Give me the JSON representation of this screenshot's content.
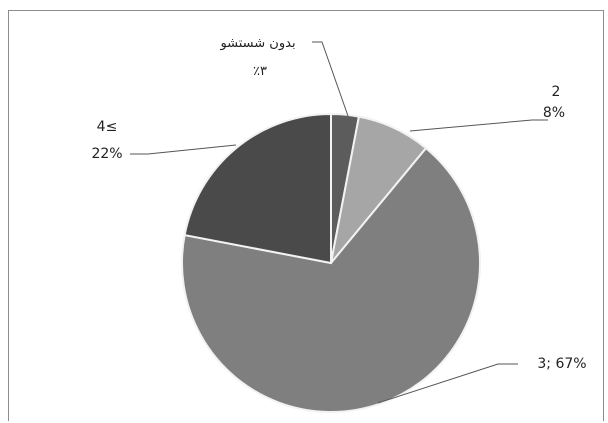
{
  "chart_data": {
    "type": "pie",
    "title": "",
    "slices": [
      {
        "name": "بدون شستشو",
        "value": 3,
        "label_line1": "بدون شستشو",
        "label_line2": "٪۳",
        "color": "#5c5c5c"
      },
      {
        "name": "2",
        "value": 8,
        "label_line1": "2",
        "label_line2": "8%",
        "color": "#a6a6a6"
      },
      {
        "name": "3",
        "value": 67,
        "label_line1": "3; 67%",
        "label_line2": "",
        "color": "#7f7f7f"
      },
      {
        "name": "4≤",
        "value": 22,
        "label_line1": "4≤",
        "label_line2": "22%",
        "color": "#4a4a4a"
      }
    ],
    "start_angle_deg": 0,
    "direction": "clockwise",
    "legend": "none"
  }
}
